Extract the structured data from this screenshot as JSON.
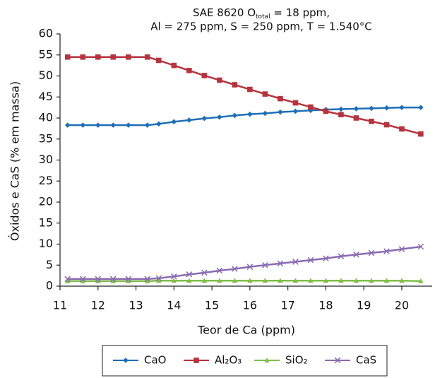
{
  "chart_data": {
    "type": "line",
    "title": {
      "prefix": "SAE 8620 O",
      "subscript": "total",
      "suffix": " = 18 ppm,",
      "line2": "Al = 275 ppm, S = 250 ppm, T = 1.540°C"
    },
    "x_label": "Teor de Ca (ppm)",
    "y_label": "Óxidos e CaS (% em massa)",
    "x": [
      11.2,
      11.6,
      12,
      12.4,
      12.8,
      13.3,
      13.6,
      14,
      14.4,
      14.8,
      15.2,
      15.6,
      16,
      16.4,
      16.8,
      17.2,
      17.6,
      18,
      18.4,
      18.8,
      19.2,
      19.6,
      20,
      20.5
    ],
    "series": [
      {
        "name": "CaO",
        "color": "#1f6fb5",
        "marker": "diamond",
        "values": [
          38.3,
          38.3,
          38.3,
          38.3,
          38.3,
          38.3,
          38.6,
          39.1,
          39.5,
          39.9,
          40.2,
          40.6,
          40.9,
          41.1,
          41.4,
          41.6,
          41.8,
          42.0,
          42.1,
          42.2,
          42.3,
          42.4,
          42.5,
          42.5
        ]
      },
      {
        "name": "Al₂O₃",
        "color": "#b5343e",
        "marker": "square",
        "values": [
          54.5,
          54.5,
          54.5,
          54.5,
          54.5,
          54.5,
          53.7,
          52.5,
          51.3,
          50.1,
          49.0,
          47.9,
          46.8,
          45.7,
          44.6,
          43.6,
          42.6,
          41.6,
          40.8,
          40.0,
          39.2,
          38.4,
          37.4,
          36.2
        ]
      },
      {
        "name": "SiO₂",
        "color": "#7fbf4a",
        "marker": "triangle",
        "values": [
          1.2,
          1.2,
          1.2,
          1.2,
          1.2,
          1.2,
          1.3,
          1.3,
          1.3,
          1.3,
          1.3,
          1.3,
          1.3,
          1.3,
          1.3,
          1.3,
          1.3,
          1.3,
          1.3,
          1.3,
          1.3,
          1.3,
          1.3,
          1.2
        ]
      },
      {
        "name": "CaS",
        "color": "#8a6bb0",
        "marker": "x",
        "values": [
          1.7,
          1.7,
          1.7,
          1.7,
          1.7,
          1.7,
          1.9,
          2.3,
          2.8,
          3.2,
          3.7,
          4.1,
          4.6,
          5.0,
          5.4,
          5.8,
          6.2,
          6.6,
          7.1,
          7.5,
          7.9,
          8.3,
          8.8,
          9.4
        ]
      }
    ],
    "xlim": [
      11,
      20.8
    ],
    "xticks": [
      11,
      12,
      13,
      14,
      15,
      16,
      17,
      18,
      19,
      20
    ],
    "ylim": [
      0,
      60
    ],
    "yticks": [
      0,
      5,
      10,
      15,
      20,
      25,
      30,
      35,
      40,
      45,
      50,
      55,
      60
    ],
    "legend": "bottom"
  }
}
